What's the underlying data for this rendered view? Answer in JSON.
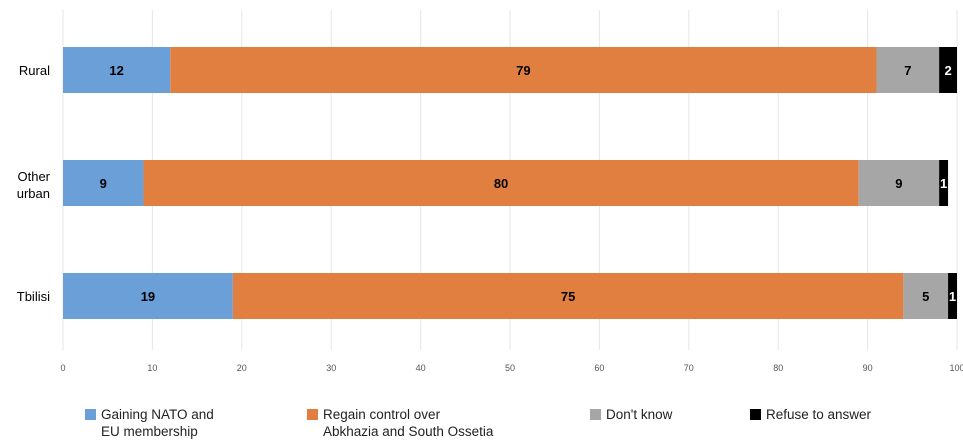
{
  "chart_data": {
    "type": "bar",
    "orientation": "horizontal",
    "stacked": true,
    "categories": [
      "Rural",
      "Other\nurban",
      "Tbilisi"
    ],
    "series": [
      {
        "name": "Gaining NATO and\nEU membership",
        "color": "#6a9fd8",
        "label_color": "#000000",
        "values": [
          12,
          9,
          19
        ]
      },
      {
        "name": "Regain control over\nAbkhazia and South Ossetia",
        "color": "#e07f3f",
        "label_color": "#000000",
        "values": [
          79,
          80,
          75
        ]
      },
      {
        "name": "Don't know",
        "color": "#a6a6a6",
        "label_color": "#000000",
        "values": [
          7,
          9,
          5
        ]
      },
      {
        "name": "Refuse to answer",
        "color": "#000000",
        "label_color": "#ffffff",
        "values": [
          2,
          1,
          1
        ]
      }
    ],
    "xlim": [
      0,
      100
    ],
    "xticks": [
      0,
      10,
      20,
      30,
      40,
      50,
      60,
      70,
      80,
      90,
      100
    ],
    "grid": true,
    "legend_position": "bottom",
    "title": "",
    "xlabel": "",
    "ylabel": ""
  }
}
